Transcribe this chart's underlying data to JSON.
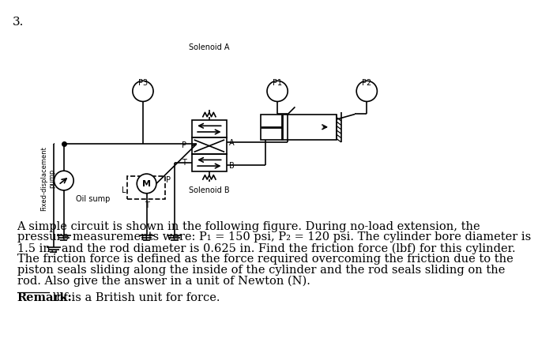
{
  "question_number": "3.",
  "solenoid_a": "Solenoid A",
  "solenoid_b": "Solenoid B",
  "label_p3": "P3",
  "label_p1": "P1",
  "label_p2": "P2",
  "label_fixed_disp": "Fixed-displacement\npump",
  "label_oil_sump": "Oil sump",
  "label_P": "P",
  "label_A": "A",
  "label_B": "B",
  "label_T": "T",
  "label_T2": "T",
  "label_L": "L",
  "bg_color": "#ffffff",
  "line_color": "#000000",
  "fontsize_main": 10.5,
  "fontsize_small": 7,
  "fontsize_tiny": 6,
  "paragraph_line1": "A simple circuit is shown in the following figure. During no-load extension, the",
  "paragraph_line2": "pressure measurements were: P₁ = 150 psi, P₂ = 120 psi. The cylinder bore diameter is",
  "paragraph_line3": "1.5 in., and the rod diameter is 0.625 in. Find the friction force (lbf) for this cylinder.",
  "paragraph_line4": "The friction force is defined as the force required overcoming the friction due to the",
  "paragraph_line5": "piston seals sliding along the inside of the cylinder and the rod seals sliding on the",
  "paragraph_line6": "rod. Also give the answer in a unit of Newton (N).",
  "remark_bold": "Remark:",
  "remark_rest": " lbf is a British unit for force."
}
